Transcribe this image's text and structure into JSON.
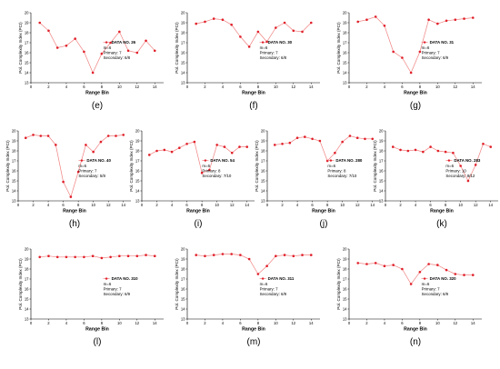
{
  "shared": {
    "y_axis_label": "Pol. Complexity Index (PCI)",
    "x_axis_label": "Range Bin",
    "y_ticks": [
      "13",
      "14",
      "15",
      "16",
      "17",
      "18",
      "19",
      "20"
    ],
    "x_ticks": [
      "0",
      "2",
      "4",
      "6",
      "8",
      "10",
      "12",
      "14"
    ],
    "meta_label_m": "m=",
    "meta_label_primary": "Primary:",
    "meta_label_secondary": "Secondary:",
    "series_color": "#e0202a",
    "line_color": "#f08080"
  },
  "chart_data": [
    {
      "panel": "(e)",
      "type": "line",
      "legend": "DATA NO. 26",
      "m": "6",
      "primary": "7",
      "secondary": "6/8",
      "xlabel": "Range Bin",
      "ylabel": "Pol. Complexity Index (PCI)",
      "xlim": [
        0,
        15
      ],
      "ylim": [
        13,
        20
      ],
      "x": [
        1,
        2,
        3,
        4,
        5,
        6,
        7,
        8,
        9,
        10,
        11,
        12,
        13,
        14
      ],
      "y": [
        19.0,
        18.2,
        16.5,
        16.7,
        17.4,
        16.1,
        14.0,
        15.9,
        17.0,
        18.1,
        16.2,
        16.0,
        17.2,
        16.2
      ]
    },
    {
      "panel": "(f)",
      "type": "line",
      "legend": "DATA NO. 30",
      "m": "6",
      "primary": "7",
      "secondary": "6/8",
      "xlabel": "Range Bin",
      "ylabel": "Pol. Complexity Index (PCI)",
      "xlim": [
        0,
        15
      ],
      "ylim": [
        13,
        20
      ],
      "x": [
        1,
        2,
        3,
        4,
        5,
        6,
        7,
        8,
        9,
        10,
        11,
        12,
        13,
        14
      ],
      "y": [
        18.9,
        19.1,
        19.4,
        19.3,
        18.8,
        17.6,
        16.6,
        18.1,
        17.1,
        18.5,
        19.0,
        18.2,
        18.1,
        19.0
      ]
    },
    {
      "panel": "(g)",
      "type": "line",
      "legend": "DATA NO. 31",
      "m": "6",
      "primary": "7",
      "secondary": "6/9",
      "xlabel": "Range Bin",
      "ylabel": "Pol. Complexity Index (PCI)",
      "xlim": [
        0,
        15
      ],
      "ylim": [
        13,
        20
      ],
      "x": [
        1,
        2,
        3,
        4,
        5,
        6,
        7,
        8,
        9,
        10,
        11,
        12,
        13,
        14
      ],
      "y": [
        19.1,
        19.3,
        19.6,
        18.7,
        16.1,
        15.5,
        14.0,
        16.1,
        19.3,
        18.9,
        19.2,
        19.3,
        19.4,
        19.5
      ]
    },
    {
      "panel": "(h)",
      "type": "line",
      "legend": "DATA NO. 40",
      "m": "6",
      "primary": "7",
      "secondary": "5/8",
      "xlabel": "Range Bin",
      "ylabel": "Pol. Complexity Index (PCI)",
      "xlim": [
        0,
        15
      ],
      "ylim": [
        13,
        20
      ],
      "x": [
        1,
        2,
        3,
        4,
        5,
        6,
        7,
        8,
        9,
        10,
        11,
        12,
        13,
        14
      ],
      "y": [
        19.3,
        19.6,
        19.5,
        19.5,
        18.6,
        14.9,
        13.4,
        15.9,
        18.6,
        17.9,
        18.9,
        19.5,
        19.5,
        19.6
      ]
    },
    {
      "panel": "(i)",
      "type": "line",
      "legend": "DATA NO. 54",
      "m": "6",
      "primary": "8",
      "secondary": "7/10",
      "xlabel": "Range Bin",
      "ylabel": "Pol. Complexity Index (PCI)",
      "xlim": [
        0,
        15
      ],
      "ylim": [
        13,
        20
      ],
      "x": [
        1,
        2,
        3,
        4,
        5,
        6,
        7,
        8,
        9,
        10,
        11,
        12,
        13,
        14
      ],
      "y": [
        17.6,
        18.0,
        18.1,
        17.9,
        18.3,
        18.7,
        18.9,
        15.8,
        16.1,
        18.6,
        18.4,
        17.8,
        18.4,
        18.4
      ]
    },
    {
      "panel": "(j)",
      "type": "line",
      "legend": "DATA NO. 280",
      "m": "6",
      "primary": "8",
      "secondary": "7/10",
      "xlabel": "Range Bin",
      "ylabel": "Pol. Complexity Index (PCI)",
      "xlim": [
        0,
        15
      ],
      "ylim": [
        13,
        20
      ],
      "x": [
        1,
        2,
        3,
        4,
        5,
        6,
        7,
        8,
        9,
        10,
        11,
        12,
        13,
        14
      ],
      "y": [
        18.6,
        18.7,
        18.8,
        19.3,
        19.4,
        19.2,
        19.0,
        17.0,
        17.8,
        18.9,
        19.5,
        19.3,
        19.2,
        19.2
      ]
    },
    {
      "panel": "(k)",
      "type": "line",
      "legend": "DATA NO. 283",
      "m": "6",
      "primary": "10",
      "secondary": "8/12",
      "xlabel": "Range Bin",
      "ylabel": "Pol. Complexity Index (PCI)",
      "xlim": [
        0,
        15
      ],
      "ylim": [
        13,
        20
      ],
      "x": [
        1,
        2,
        3,
        4,
        5,
        6,
        7,
        8,
        9,
        10,
        11,
        12,
        13,
        14
      ],
      "y": [
        18.4,
        18.1,
        18.0,
        18.1,
        17.9,
        18.4,
        18.0,
        17.9,
        17.8,
        16.5,
        15.0,
        16.6,
        18.7,
        18.4
      ]
    },
    {
      "panel": "(l)",
      "type": "line",
      "legend": "DATA NO. 310",
      "m": "6",
      "primary": "7",
      "secondary": "6/9",
      "xlabel": "Range Bin",
      "ylabel": "Pol. Complexity Index (PCI)",
      "xlim": [
        0,
        15
      ],
      "ylim": [
        13,
        20
      ],
      "x": [
        1,
        2,
        3,
        4,
        5,
        6,
        7,
        8,
        9,
        10,
        11,
        12,
        13,
        14
      ],
      "y": [
        19.2,
        19.3,
        19.2,
        19.2,
        19.2,
        19.2,
        19.3,
        19.1,
        19.2,
        19.3,
        19.3,
        19.3,
        19.4,
        19.3
      ]
    },
    {
      "panel": "(m)",
      "type": "line",
      "legend": "DATA NO. 311",
      "m": "6",
      "primary": "7",
      "secondary": "6/9",
      "xlabel": "Range Bin",
      "ylabel": "Pol. Complexity Index (PCI)",
      "xlim": [
        0,
        15
      ],
      "ylim": [
        13,
        20
      ],
      "x": [
        1,
        2,
        3,
        4,
        5,
        6,
        7,
        8,
        9,
        10,
        11,
        12,
        13,
        14
      ],
      "y": [
        19.4,
        19.3,
        19.4,
        19.5,
        19.5,
        19.4,
        19.0,
        17.5,
        18.3,
        19.3,
        19.4,
        19.3,
        19.4,
        19.4
      ]
    },
    {
      "panel": "(n)",
      "type": "line",
      "legend": "DATA NO. 320",
      "m": "6",
      "primary": "7",
      "secondary": "6/9",
      "xlabel": "Range Bin",
      "ylabel": "Pol. Complexity Index (PCI)",
      "xlim": [
        0,
        15
      ],
      "ylim": [
        13,
        20
      ],
      "x": [
        1,
        2,
        3,
        4,
        5,
        6,
        7,
        8,
        9,
        10,
        11,
        12,
        13,
        14
      ],
      "y": [
        18.6,
        18.5,
        18.6,
        18.3,
        18.4,
        18.0,
        16.5,
        17.7,
        18.5,
        18.4,
        17.9,
        17.5,
        17.4,
        17.4
      ]
    }
  ]
}
